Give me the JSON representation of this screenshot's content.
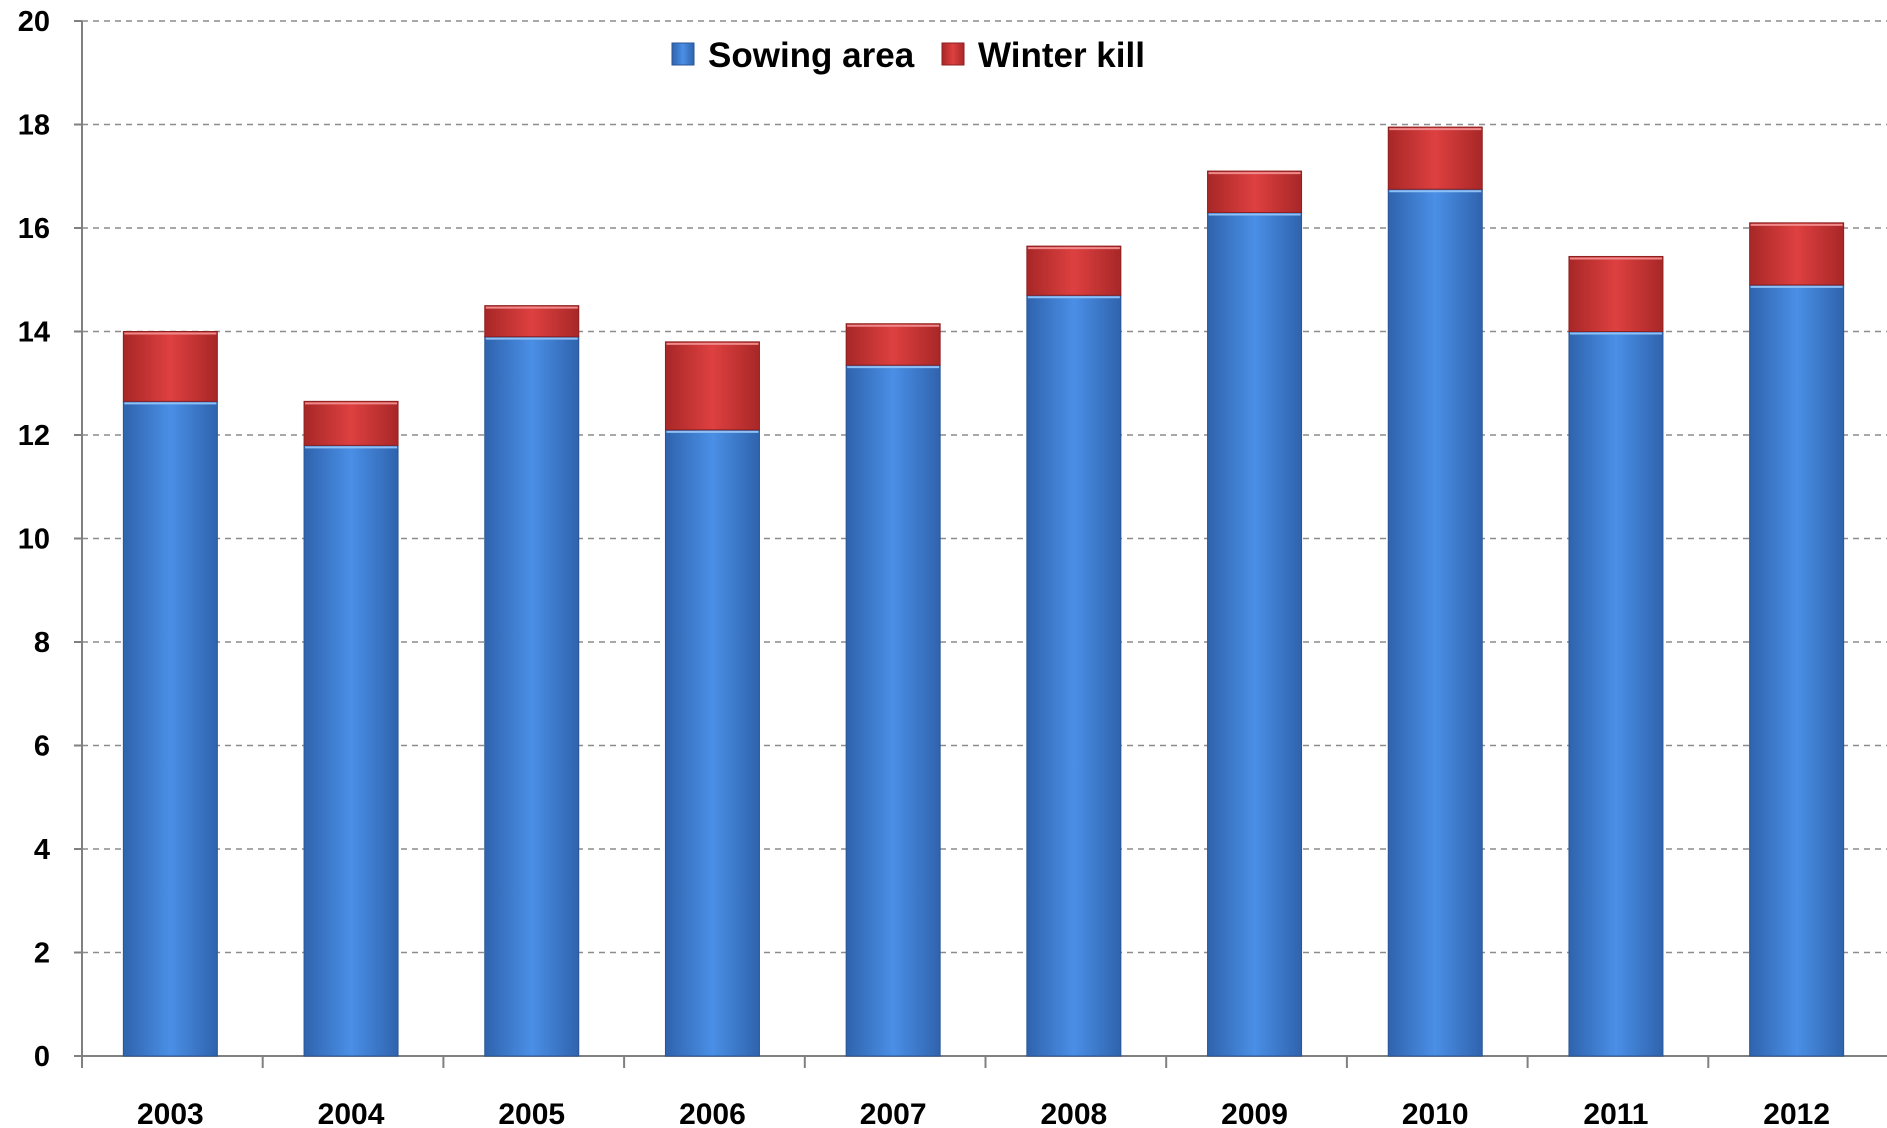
{
  "chart_data": {
    "type": "bar",
    "stacked": true,
    "title": "",
    "xlabel": "",
    "ylabel": "",
    "categories": [
      "2003",
      "2004",
      "2005",
      "2006",
      "2007",
      "2008",
      "2009",
      "2010",
      "2011",
      "2012"
    ],
    "series": [
      {
        "name": "Sowing area",
        "color": "#3f7fd6",
        "values": [
          12.65,
          11.8,
          13.9,
          12.1,
          13.35,
          14.7,
          16.3,
          16.75,
          14.0,
          14.9
        ]
      },
      {
        "name": "Winter kill",
        "color": "#c83434",
        "values": [
          1.35,
          0.85,
          0.6,
          1.7,
          0.8,
          0.95,
          0.8,
          1.2,
          1.45,
          1.2
        ]
      }
    ],
    "ylim": [
      0,
      20
    ],
    "yticks": [
      "0",
      "2",
      "4",
      "6",
      "8",
      "10",
      "12",
      "14",
      "16",
      "18",
      "20"
    ],
    "grid": true,
    "legend_position": "top-center"
  }
}
